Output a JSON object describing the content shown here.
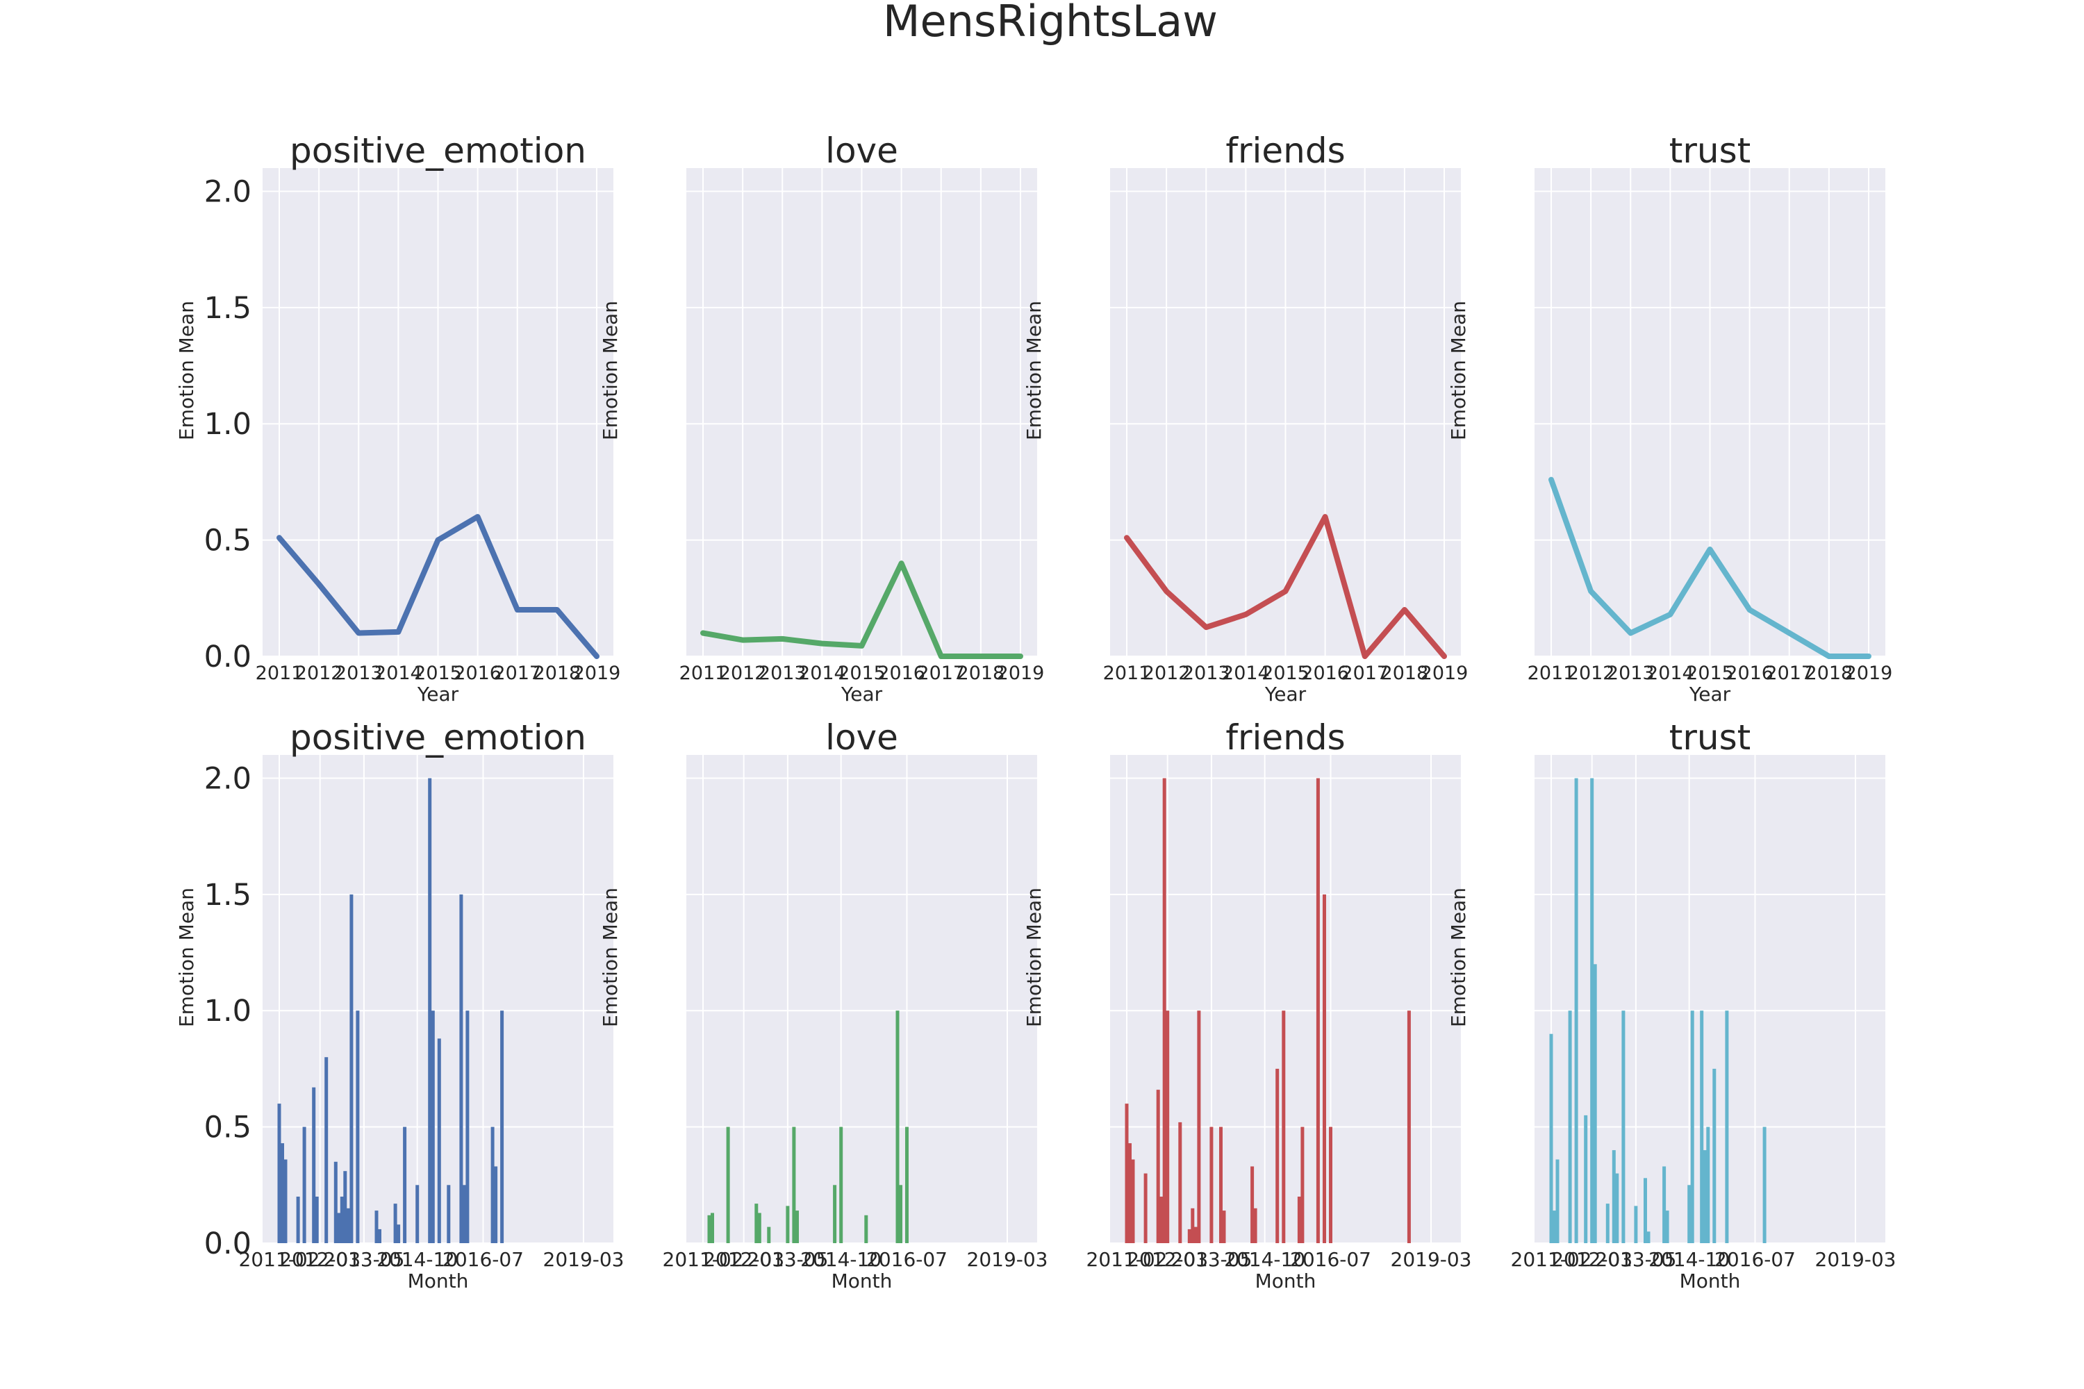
{
  "figure_title": "MensRightsLaw",
  "chart_data": [
    {
      "type": "line",
      "title": "positive_emotion",
      "xlabel": "Year",
      "ylabel": "Emotion Mean",
      "x": [
        "2011",
        "2012",
        "2013",
        "2014",
        "2015",
        "2016",
        "2017",
        "2018",
        "2019"
      ],
      "values": [
        0.51,
        0.31,
        0.1,
        0.105,
        0.5,
        0.6,
        0.2,
        0.2,
        0.0
      ],
      "color": "#4c72b0",
      "ylim": [
        0,
        2.1
      ],
      "yticks": [
        "0.0",
        "0.5",
        "1.0",
        "1.5",
        "2.0"
      ],
      "show_yticks": true
    },
    {
      "type": "line",
      "title": "love",
      "xlabel": "Year",
      "ylabel": "Emotion Mean",
      "x": [
        "2011",
        "2012",
        "2013",
        "2014",
        "2015",
        "2016",
        "2017",
        "2018",
        "2019"
      ],
      "values": [
        0.1,
        0.07,
        0.075,
        0.055,
        0.045,
        0.4,
        0.0,
        0.0,
        0.0
      ],
      "color": "#55a868",
      "ylim": [
        0,
        2.1
      ],
      "show_yticks": false
    },
    {
      "type": "line",
      "title": "friends",
      "xlabel": "Year",
      "ylabel": "Emotion Mean",
      "x": [
        "2011",
        "2012",
        "2013",
        "2014",
        "2015",
        "2016",
        "2017",
        "2018",
        "2019"
      ],
      "values": [
        0.51,
        0.28,
        0.125,
        0.18,
        0.28,
        0.6,
        0.0,
        0.2,
        0.0
      ],
      "color": "#c44e52",
      "ylim": [
        0,
        2.1
      ],
      "show_yticks": false
    },
    {
      "type": "line",
      "title": "trust",
      "xlabel": "Year",
      "ylabel": "Emotion Mean",
      "x": [
        "2011",
        "2012",
        "2013",
        "2014",
        "2015",
        "2016",
        "2017",
        "2018",
        "2019"
      ],
      "values": [
        0.76,
        0.28,
        0.1,
        0.18,
        0.46,
        0.2,
        0.1,
        0.0,
        0.0
      ],
      "color": "#64b5cd",
      "ylim": [
        0,
        2.1
      ],
      "show_yticks": false
    },
    {
      "type": "bar",
      "title": "positive_emotion",
      "xlabel": "Month",
      "ylabel": "Emotion Mean",
      "xticks": [
        "2011-02",
        "2012-03",
        "2013-05",
        "2014-10",
        "2016-07",
        "2019-03"
      ],
      "bars": [
        {
          "date": "2011-02",
          "value": 0.6
        },
        {
          "date": "2011-03",
          "value": 0.43
        },
        {
          "date": "2011-04",
          "value": 0.36
        },
        {
          "date": "2011-08",
          "value": 0.2
        },
        {
          "date": "2011-10",
          "value": 0.5
        },
        {
          "date": "2012-01",
          "value": 0.67
        },
        {
          "date": "2012-02",
          "value": 0.2
        },
        {
          "date": "2012-05",
          "value": 0.8
        },
        {
          "date": "2012-08",
          "value": 0.35
        },
        {
          "date": "2012-09",
          "value": 0.13
        },
        {
          "date": "2012-10",
          "value": 0.2
        },
        {
          "date": "2012-11",
          "value": 0.31
        },
        {
          "date": "2012-12",
          "value": 0.15
        },
        {
          "date": "2013-01",
          "value": 1.5
        },
        {
          "date": "2013-03",
          "value": 1.0
        },
        {
          "date": "2013-09",
          "value": 0.14
        },
        {
          "date": "2013-10",
          "value": 0.06
        },
        {
          "date": "2014-03",
          "value": 0.17
        },
        {
          "date": "2014-04",
          "value": 0.08
        },
        {
          "date": "2014-06",
          "value": 0.5
        },
        {
          "date": "2014-10",
          "value": 0.25
        },
        {
          "date": "2015-02",
          "value": 2.0
        },
        {
          "date": "2015-03",
          "value": 1.0
        },
        {
          "date": "2015-05",
          "value": 0.88
        },
        {
          "date": "2015-08",
          "value": 0.25
        },
        {
          "date": "2015-12",
          "value": 1.5
        },
        {
          "date": "2016-01",
          "value": 0.25
        },
        {
          "date": "2016-02",
          "value": 1.0
        },
        {
          "date": "2016-10",
          "value": 0.5
        },
        {
          "date": "2016-11",
          "value": 0.33
        },
        {
          "date": "2017-01",
          "value": 1.0
        }
      ],
      "color": "#4c72b0",
      "ylim": [
        0,
        2.1
      ],
      "yticks": [
        "0.0",
        "0.5",
        "1.0",
        "1.5",
        "2.0"
      ],
      "show_yticks": true
    },
    {
      "type": "bar",
      "title": "love",
      "xlabel": "Month",
      "ylabel": "Emotion Mean",
      "xticks": [
        "2011-02",
        "2012-03",
        "2013-05",
        "2014-10",
        "2016-07",
        "2019-03"
      ],
      "bars": [
        {
          "date": "2011-04",
          "value": 0.12
        },
        {
          "date": "2011-05",
          "value": 0.13
        },
        {
          "date": "2011-10",
          "value": 0.5
        },
        {
          "date": "2012-07",
          "value": 0.17
        },
        {
          "date": "2012-08",
          "value": 0.13
        },
        {
          "date": "2012-11",
          "value": 0.07
        },
        {
          "date": "2013-05",
          "value": 0.16
        },
        {
          "date": "2013-07",
          "value": 0.5
        },
        {
          "date": "2013-08",
          "value": 0.14
        },
        {
          "date": "2014-08",
          "value": 0.25
        },
        {
          "date": "2014-10",
          "value": 0.5
        },
        {
          "date": "2015-06",
          "value": 0.12
        },
        {
          "date": "2016-04",
          "value": 1.0
        },
        {
          "date": "2016-05",
          "value": 0.25
        },
        {
          "date": "2016-07",
          "value": 0.5
        }
      ],
      "color": "#55a868",
      "ylim": [
        0,
        2.1
      ],
      "show_yticks": false
    },
    {
      "type": "bar",
      "title": "friends",
      "xlabel": "Month",
      "ylabel": "Emotion Mean",
      "xticks": [
        "2011-02",
        "2012-03",
        "2013-05",
        "2014-10",
        "2016-07",
        "2019-03"
      ],
      "bars": [
        {
          "date": "2011-02",
          "value": 0.6
        },
        {
          "date": "2011-03",
          "value": 0.43
        },
        {
          "date": "2011-04",
          "value": 0.36
        },
        {
          "date": "2011-08",
          "value": 0.3
        },
        {
          "date": "2011-12",
          "value": 0.66
        },
        {
          "date": "2012-01",
          "value": 0.2
        },
        {
          "date": "2012-02",
          "value": 2.0
        },
        {
          "date": "2012-03",
          "value": 1.0
        },
        {
          "date": "2012-07",
          "value": 0.52
        },
        {
          "date": "2012-10",
          "value": 0.06
        },
        {
          "date": "2012-11",
          "value": 0.15
        },
        {
          "date": "2012-12",
          "value": 0.07
        },
        {
          "date": "2013-01",
          "value": 1.0
        },
        {
          "date": "2013-05",
          "value": 0.5
        },
        {
          "date": "2013-08",
          "value": 0.5
        },
        {
          "date": "2013-09",
          "value": 0.14
        },
        {
          "date": "2014-06",
          "value": 0.33
        },
        {
          "date": "2014-07",
          "value": 0.15
        },
        {
          "date": "2015-02",
          "value": 0.75
        },
        {
          "date": "2015-04",
          "value": 1.0
        },
        {
          "date": "2015-09",
          "value": 0.2
        },
        {
          "date": "2015-10",
          "value": 0.5
        },
        {
          "date": "2016-03",
          "value": 2.0
        },
        {
          "date": "2016-05",
          "value": 1.5
        },
        {
          "date": "2016-07",
          "value": 0.5
        },
        {
          "date": "2018-08",
          "value": 1.0
        }
      ],
      "color": "#c44e52",
      "ylim": [
        0,
        2.1
      ],
      "show_yticks": false
    },
    {
      "type": "bar",
      "title": "trust",
      "xlabel": "Month",
      "ylabel": "Emotion Mean",
      "xticks": [
        "2011-02",
        "2012-03",
        "2013-05",
        "2014-10",
        "2016-07",
        "2019-03"
      ],
      "bars": [
        {
          "date": "2011-02",
          "value": 0.9
        },
        {
          "date": "2011-03",
          "value": 0.14
        },
        {
          "date": "2011-04",
          "value": 0.36
        },
        {
          "date": "2011-08",
          "value": 1.0
        },
        {
          "date": "2011-10",
          "value": 2.0
        },
        {
          "date": "2012-01",
          "value": 0.55
        },
        {
          "date": "2012-03",
          "value": 2.0
        },
        {
          "date": "2012-04",
          "value": 1.2
        },
        {
          "date": "2012-08",
          "value": 0.17
        },
        {
          "date": "2012-10",
          "value": 0.4
        },
        {
          "date": "2012-11",
          "value": 0.3
        },
        {
          "date": "2013-01",
          "value": 1.0
        },
        {
          "date": "2013-05",
          "value": 0.16
        },
        {
          "date": "2013-08",
          "value": 0.28
        },
        {
          "date": "2013-09",
          "value": 0.05
        },
        {
          "date": "2014-02",
          "value": 0.33
        },
        {
          "date": "2014-03",
          "value": 0.14
        },
        {
          "date": "2014-10",
          "value": 0.25
        },
        {
          "date": "2014-11",
          "value": 1.0
        },
        {
          "date": "2015-02",
          "value": 1.0
        },
        {
          "date": "2015-03",
          "value": 0.4
        },
        {
          "date": "2015-04",
          "value": 0.5
        },
        {
          "date": "2015-06",
          "value": 0.75
        },
        {
          "date": "2015-10",
          "value": 1.0
        },
        {
          "date": "2016-10",
          "value": 0.5
        }
      ],
      "color": "#64b5cd",
      "ylim": [
        0,
        2.1
      ],
      "show_yticks": false
    }
  ]
}
